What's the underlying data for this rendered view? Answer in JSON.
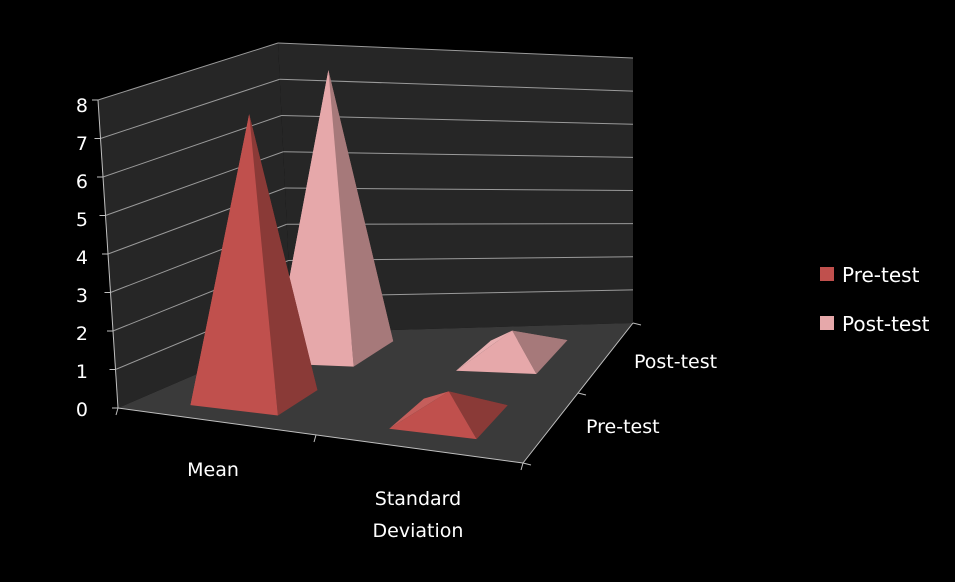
{
  "chart_data": {
    "type": "bar",
    "style": "3d-pyramid",
    "title": "",
    "xlabel": "",
    "ylabel": "",
    "categories": [
      "Mean",
      "Standard Deviation"
    ],
    "y_ticks": [
      "0",
      "1",
      "2",
      "3",
      "4",
      "5",
      "6",
      "7",
      "8"
    ],
    "ylim": [
      0,
      8
    ],
    "grid": true,
    "legend_position": "right",
    "series": [
      {
        "name": "Pre-test",
        "values": [
          7.5,
          0.7
        ],
        "color": "#c0504d"
      },
      {
        "name": "Post-test",
        "values": [
          7.7,
          0.7
        ],
        "color": "#e6a8aa"
      }
    ],
    "depth_labels": [
      "Pre-test",
      "Post-test"
    ],
    "colors": {
      "background": "#000000",
      "wall": "#262626",
      "floor": "#3a3a3a",
      "gridline": "#9a9a9a",
      "text": "#ffffff"
    }
  }
}
